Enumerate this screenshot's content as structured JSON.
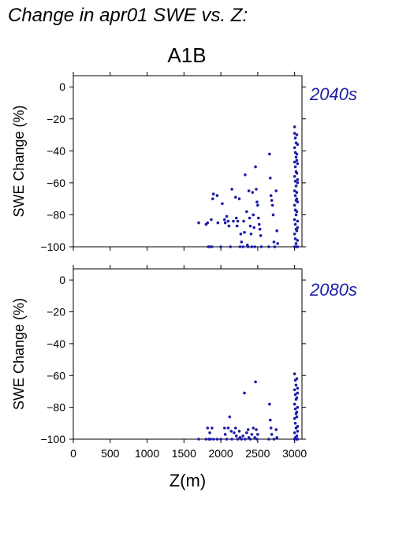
{
  "title": "Change in apr01 SWE vs. Z:",
  "scenario": "A1B",
  "chart_data": [
    {
      "type": "scatter",
      "period_label": "2040s",
      "ylabel": "SWE Change (%)",
      "xlabel": "",
      "xlim": [
        0,
        3100
      ],
      "ylim": [
        -100,
        7
      ],
      "xticks": [
        0,
        500,
        1000,
        1500,
        2000,
        2500,
        3000
      ],
      "yticks": [
        0,
        -20,
        -40,
        -60,
        -80,
        -100
      ],
      "ytick_labels": [
        "0",
        "−20",
        "−40",
        "−60",
        "−80",
        "−100"
      ],
      "series_color": "#1c1ca8",
      "points": [
        [
          1700,
          -85
        ],
        [
          1800,
          -86
        ],
        [
          1820,
          -85
        ],
        [
          1830,
          -100
        ],
        [
          1850,
          -100
        ],
        [
          1870,
          -83
        ],
        [
          1880,
          -100
        ],
        [
          1890,
          -70
        ],
        [
          1900,
          -67
        ],
        [
          1950,
          -68
        ],
        [
          1960,
          -85
        ],
        [
          2000,
          -100
        ],
        [
          2020,
          -73
        ],
        [
          2050,
          -83
        ],
        [
          2060,
          -85
        ],
        [
          2080,
          -81
        ],
        [
          2100,
          -84
        ],
        [
          2110,
          -87
        ],
        [
          2130,
          -100
        ],
        [
          2150,
          -64
        ],
        [
          2170,
          -84
        ],
        [
          2200,
          -69
        ],
        [
          2210,
          -82
        ],
        [
          2220,
          -87
        ],
        [
          2230,
          -84
        ],
        [
          2250,
          -70
        ],
        [
          2260,
          -100
        ],
        [
          2270,
          -92
        ],
        [
          2280,
          -97
        ],
        [
          2300,
          -100
        ],
        [
          2310,
          -84
        ],
        [
          2320,
          -91
        ],
        [
          2330,
          -55
        ],
        [
          2350,
          -78
        ],
        [
          2360,
          -99
        ],
        [
          2370,
          -100
        ],
        [
          2380,
          -65
        ],
        [
          2390,
          -82
        ],
        [
          2400,
          -87
        ],
        [
          2410,
          -92
        ],
        [
          2420,
          -100
        ],
        [
          2430,
          -66
        ],
        [
          2440,
          -80
        ],
        [
          2450,
          -88
        ],
        [
          2460,
          -100
        ],
        [
          2470,
          -50
        ],
        [
          2480,
          -64
        ],
        [
          2490,
          -72
        ],
        [
          2500,
          -74
        ],
        [
          2510,
          -82
        ],
        [
          2520,
          -86
        ],
        [
          2530,
          -89
        ],
        [
          2540,
          -93
        ],
        [
          2550,
          -100
        ],
        [
          2650,
          -100
        ],
        [
          2660,
          -42
        ],
        [
          2670,
          -57
        ],
        [
          2680,
          -68
        ],
        [
          2690,
          -71
        ],
        [
          2700,
          -74
        ],
        [
          2710,
          -80
        ],
        [
          2720,
          -97
        ],
        [
          2730,
          -100
        ],
        [
          2750,
          -65
        ],
        [
          2760,
          -90
        ],
        [
          2770,
          -98
        ],
        [
          3000,
          -25
        ],
        [
          3000,
          -29
        ],
        [
          3010,
          -32
        ],
        [
          3020,
          -35
        ],
        [
          3000,
          -38
        ],
        [
          3010,
          -41
        ],
        [
          3020,
          -44
        ],
        [
          3000,
          -47
        ],
        [
          3010,
          -50
        ],
        [
          3020,
          -53
        ],
        [
          3000,
          -56
        ],
        [
          3010,
          -59
        ],
        [
          3020,
          -62
        ],
        [
          3000,
          -65
        ],
        [
          3010,
          -68
        ],
        [
          3020,
          -71
        ],
        [
          3000,
          -74
        ],
        [
          3010,
          -77
        ],
        [
          3020,
          -80
        ],
        [
          3000,
          -83
        ],
        [
          3010,
          -86
        ],
        [
          3020,
          -89
        ],
        [
          3000,
          -92
        ],
        [
          3010,
          -95
        ],
        [
          3020,
          -98
        ],
        [
          3030,
          -100
        ],
        [
          3000,
          -100
        ],
        [
          3010,
          -100
        ],
        [
          3040,
          -100
        ],
        [
          3030,
          -30
        ],
        [
          3040,
          -36
        ],
        [
          3030,
          -42
        ],
        [
          3040,
          -48
        ],
        [
          3030,
          -54
        ],
        [
          3040,
          -60
        ],
        [
          3030,
          -66
        ],
        [
          3040,
          -72
        ],
        [
          3030,
          -78
        ],
        [
          3040,
          -84
        ],
        [
          3030,
          -90
        ],
        [
          3040,
          -96
        ],
        [
          3030,
          -46
        ],
        [
          3040,
          -58
        ],
        [
          3030,
          -70
        ],
        [
          3040,
          -88
        ]
      ]
    },
    {
      "type": "scatter",
      "period_label": "2080s",
      "ylabel": "SWE Change (%)",
      "xlabel": "Z(m)",
      "xlim": [
        0,
        3100
      ],
      "ylim": [
        -100,
        7
      ],
      "xticks": [
        0,
        500,
        1000,
        1500,
        2000,
        2500,
        3000
      ],
      "xtick_labels": [
        "0",
        "500",
        "1000",
        "1500",
        "2000",
        "2500",
        "3000"
      ],
      "yticks": [
        0,
        -20,
        -40,
        -60,
        -80,
        -100
      ],
      "ytick_labels": [
        "0",
        "−20",
        "−40",
        "−60",
        "−80",
        "−100"
      ],
      "series_color": "#1c1ca8",
      "points": [
        [
          1700,
          -100
        ],
        [
          1800,
          -100
        ],
        [
          1820,
          -93
        ],
        [
          1840,
          -100
        ],
        [
          1850,
          -96
        ],
        [
          1860,
          -100
        ],
        [
          1880,
          -93
        ],
        [
          1900,
          -100
        ],
        [
          1950,
          -100
        ],
        [
          2000,
          -100
        ],
        [
          2050,
          -93
        ],
        [
          2060,
          -97
        ],
        [
          2080,
          -100
        ],
        [
          2100,
          -93
        ],
        [
          2120,
          -86
        ],
        [
          2140,
          -95
        ],
        [
          2150,
          -100
        ],
        [
          2180,
          -96
        ],
        [
          2200,
          -93
        ],
        [
          2210,
          -98
        ],
        [
          2230,
          -100
        ],
        [
          2250,
          -95
        ],
        [
          2260,
          -99
        ],
        [
          2280,
          -100
        ],
        [
          2300,
          -98
        ],
        [
          2320,
          -71
        ],
        [
          2330,
          -100
        ],
        [
          2350,
          -96
        ],
        [
          2370,
          -94
        ],
        [
          2380,
          -99
        ],
        [
          2400,
          -100
        ],
        [
          2420,
          -97
        ],
        [
          2440,
          -93
        ],
        [
          2460,
          -99
        ],
        [
          2470,
          -64
        ],
        [
          2480,
          -94
        ],
        [
          2490,
          -100
        ],
        [
          2500,
          -97
        ],
        [
          2650,
          -100
        ],
        [
          2660,
          -78
        ],
        [
          2670,
          -88
        ],
        [
          2680,
          -93
        ],
        [
          2690,
          -97
        ],
        [
          2720,
          -100
        ],
        [
          2750,
          -94
        ],
        [
          2760,
          -99
        ],
        [
          3000,
          -59
        ],
        [
          3010,
          -63
        ],
        [
          3020,
          -66
        ],
        [
          3000,
          -69
        ],
        [
          3010,
          -72
        ],
        [
          3020,
          -75
        ],
        [
          3000,
          -78
        ],
        [
          3010,
          -81
        ],
        [
          3020,
          -84
        ],
        [
          3000,
          -87
        ],
        [
          3010,
          -90
        ],
        [
          3020,
          -93
        ],
        [
          3000,
          -96
        ],
        [
          3010,
          -99
        ],
        [
          3020,
          -100
        ],
        [
          3030,
          -100
        ],
        [
          3040,
          -100
        ],
        [
          3000,
          -100
        ],
        [
          3030,
          -62
        ],
        [
          3040,
          -68
        ],
        [
          3030,
          -74
        ],
        [
          3040,
          -80
        ],
        [
          3030,
          -86
        ],
        [
          3040,
          -92
        ],
        [
          3030,
          -98
        ],
        [
          3040,
          -71
        ],
        [
          3030,
          -83
        ],
        [
          3040,
          -95
        ]
      ]
    }
  ]
}
